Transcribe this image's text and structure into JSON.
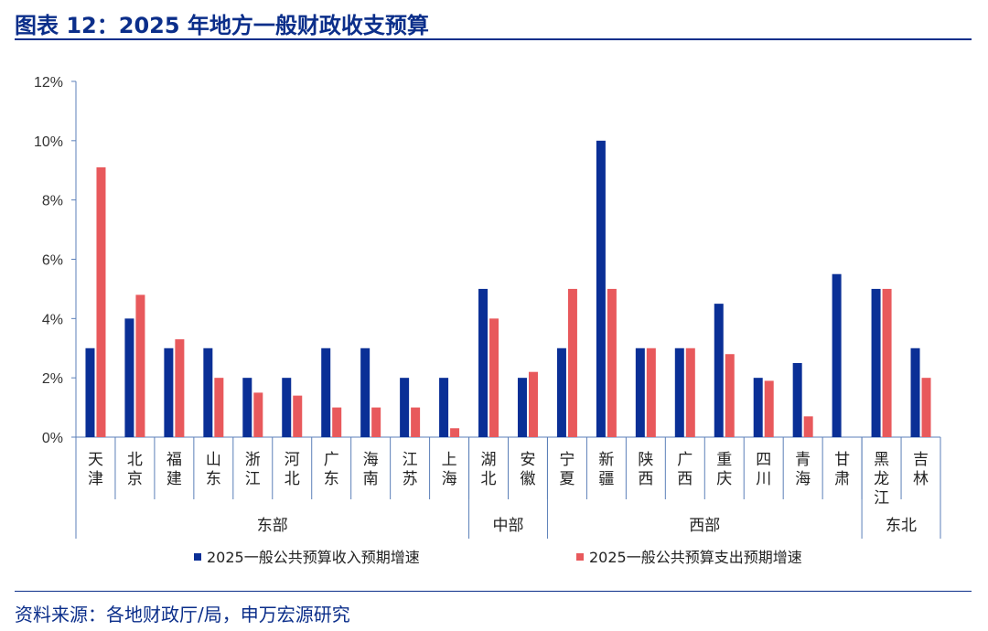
{
  "header": {
    "title": "图表 12：2025 年地方一般财政收支预算"
  },
  "footer": {
    "source": "资料来源：各地财政厅/局，申万宏源研究"
  },
  "colors": {
    "revenue": "#0a2f96",
    "expenditure": "#e8595c",
    "axis": "#5b7fb8",
    "title": "#0b2e8a"
  },
  "chart_data": {
    "type": "bar",
    "categories": [
      "天津",
      "北京",
      "福建",
      "山东",
      "浙江",
      "河北",
      "广东",
      "海南",
      "江苏",
      "上海",
      "湖北",
      "安徽",
      "宁夏",
      "新疆",
      "陕西",
      "广西",
      "重庆",
      "四川",
      "青海",
      "甘肃",
      "黑龙江",
      "吉林"
    ],
    "series": [
      {
        "name": "2025一般公共预算收入预期增速",
        "values": [
          3,
          4,
          3,
          3,
          2,
          2,
          3,
          3,
          2,
          2,
          5,
          2,
          3,
          10,
          3,
          3,
          4.5,
          2,
          2.5,
          5.5,
          5,
          3
        ]
      },
      {
        "name": "2025一般公共预算支出预期增速",
        "values": [
          9.1,
          4.8,
          3.3,
          2,
          1.5,
          1.4,
          1,
          1,
          1,
          0.3,
          4,
          2.2,
          5,
          5,
          3,
          3,
          2.8,
          1.9,
          0.7,
          null,
          5,
          2
        ]
      }
    ],
    "groups": [
      {
        "name": "东部",
        "count": 10
      },
      {
        "name": "中部",
        "count": 2
      },
      {
        "name": "西部",
        "count": 8
      },
      {
        "name": "东北",
        "count": 2
      }
    ],
    "y_ticks": [
      "0%",
      "2%",
      "4%",
      "6%",
      "8%",
      "10%",
      "12%"
    ],
    "ylim": [
      0,
      12
    ],
    "legend_position": "bottom",
    "grid": false
  }
}
